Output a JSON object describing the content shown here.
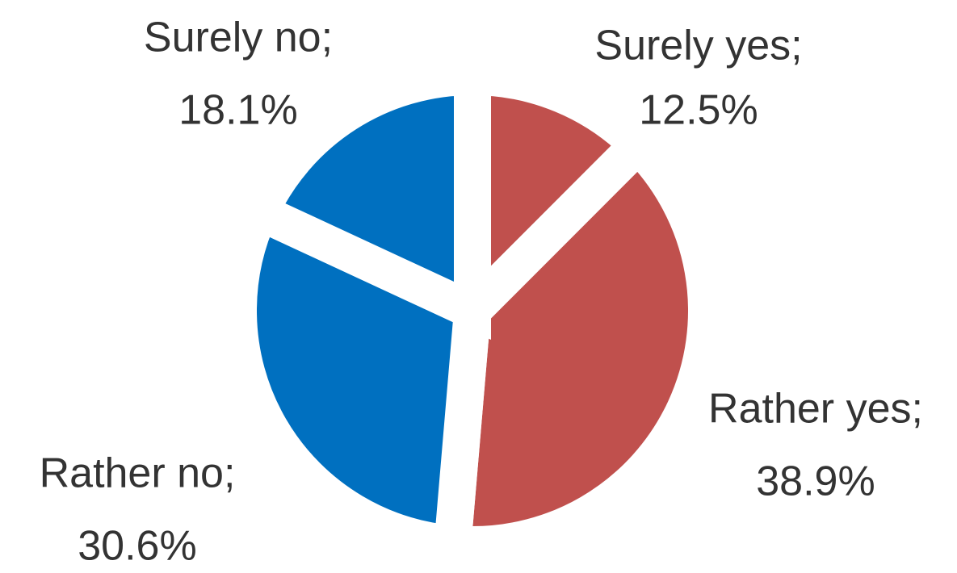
{
  "chart_data": {
    "type": "pie",
    "categories": [
      "Surely yes;",
      "Rather yes;",
      "Rather no;",
      "Surely no;"
    ],
    "values": [
      12.5,
      38.9,
      30.6,
      18.1
    ],
    "value_labels": [
      "12.5%",
      "38.9%",
      "30.6%",
      "18.1%"
    ],
    "colors": [
      "#c0504d",
      "#c0504d",
      "#0070c0",
      "#0070c0"
    ]
  }
}
